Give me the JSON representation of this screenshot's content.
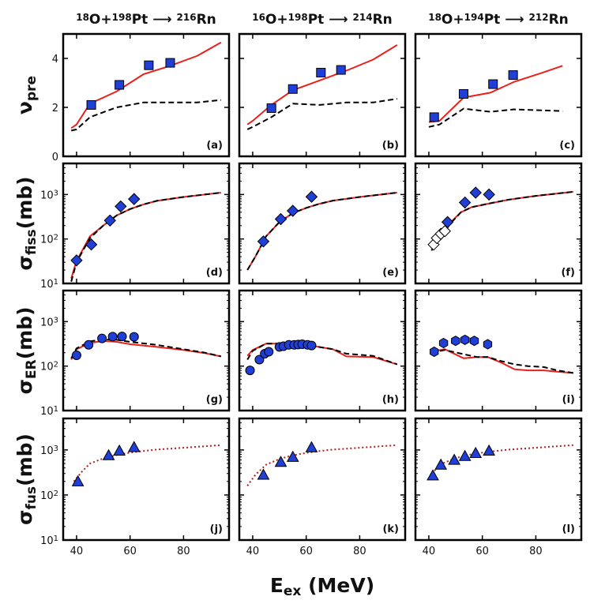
{
  "figure": {
    "xlabel": "E_ex (MeV)",
    "col_titles": [
      {
        "p1": "18",
        "b1": "O+",
        "p2": "198",
        "b2": "Pt",
        "arrow": "⟶",
        "p3": "216",
        "b3": "Rn"
      },
      {
        "p1": "16",
        "b1": "O+",
        "p2": "198",
        "b2": "Pt",
        "arrow": "⟶",
        "p3": "214",
        "b3": "Rn"
      },
      {
        "p1": "18",
        "b1": "O+",
        "p2": "194",
        "b2": "Pt",
        "arrow": "⟶",
        "p3": "212",
        "b3": "Rn"
      }
    ],
    "row_ylabels": [
      {
        "sym": "ν",
        "sub": "pre",
        "unit": ""
      },
      {
        "sym": "σ",
        "sub": "fiss",
        "unit": "(mb)"
      },
      {
        "sym": "σ",
        "sub": "ER",
        "unit": "(mb)"
      },
      {
        "sym": "σ",
        "sub": "fus",
        "unit": "(mb)"
      }
    ],
    "x_ticks": [
      40,
      60,
      80
    ],
    "colors": {
      "model_red": "#e8211c",
      "dashed": "#000000",
      "marker_fill": "#1f3fd6",
      "dotted": "#b02020"
    }
  },
  "chart_data": [
    {
      "panel": "(a)",
      "type": "line",
      "xlim": [
        35,
        97
      ],
      "ylim": [
        0,
        5
      ],
      "yscale": "linear",
      "yticks": [
        0,
        2,
        4
      ],
      "series": [
        {
          "style": "solid",
          "x": [
            38,
            40,
            45,
            55,
            65,
            75,
            85,
            94
          ],
          "y": [
            1.15,
            1.3,
            2.15,
            2.65,
            3.35,
            3.7,
            4.1,
            4.65
          ]
        },
        {
          "style": "dashed",
          "x": [
            38,
            40,
            45,
            55,
            65,
            75,
            85,
            94
          ],
          "y": [
            1.05,
            1.1,
            1.6,
            2.0,
            2.2,
            2.2,
            2.2,
            2.3
          ]
        },
        {
          "style": "square",
          "x": [
            45.5,
            56,
            67,
            75
          ],
          "y": [
            2.1,
            2.92,
            3.72,
            3.82
          ]
        }
      ]
    },
    {
      "panel": "(b)",
      "type": "line",
      "xlim": [
        35,
        97
      ],
      "ylim": [
        0,
        5
      ],
      "yscale": "linear",
      "yticks": [
        0,
        2,
        4
      ],
      "series": [
        {
          "style": "solid",
          "x": [
            38,
            40,
            47,
            55,
            65,
            75,
            85,
            94
          ],
          "y": [
            1.3,
            1.45,
            2.1,
            2.7,
            3.1,
            3.5,
            3.95,
            4.55
          ]
        },
        {
          "style": "dashed",
          "x": [
            38,
            40,
            47,
            55,
            65,
            75,
            85,
            94
          ],
          "y": [
            1.1,
            1.2,
            1.6,
            2.15,
            2.1,
            2.2,
            2.2,
            2.35
          ]
        },
        {
          "style": "square",
          "x": [
            47,
            55,
            65.5,
            73
          ],
          "y": [
            1.97,
            2.75,
            3.42,
            3.53
          ]
        }
      ]
    },
    {
      "panel": "(c)",
      "type": "line",
      "xlim": [
        35,
        97
      ],
      "ylim": [
        0,
        5
      ],
      "yscale": "linear",
      "yticks": [
        0,
        2,
        4
      ],
      "series": [
        {
          "style": "solid",
          "x": [
            40,
            44,
            53,
            63,
            72,
            82,
            90
          ],
          "y": [
            1.4,
            1.45,
            2.4,
            2.6,
            3.05,
            3.4,
            3.7
          ]
        },
        {
          "style": "dashed",
          "x": [
            40,
            44,
            53,
            63,
            72,
            82,
            90
          ],
          "y": [
            1.2,
            1.3,
            1.95,
            1.82,
            1.92,
            1.88,
            1.85
          ]
        },
        {
          "style": "square",
          "x": [
            42,
            53,
            64,
            71.5
          ],
          "y": [
            1.6,
            2.55,
            2.95,
            3.32
          ]
        }
      ]
    },
    {
      "panel": "(d)",
      "type": "line",
      "xlim": [
        35,
        97
      ],
      "ylim": [
        10,
        5000
      ],
      "yscale": "log",
      "yticks": [
        10,
        100,
        1000
      ],
      "ytick_labels": [
        "10¹",
        "10²",
        "10³"
      ],
      "series": [
        {
          "style": "solid",
          "x": [
            38,
            40,
            45,
            50,
            55,
            60,
            65,
            70,
            80,
            94
          ],
          "y": [
            13,
            32,
            115,
            200,
            340,
            470,
            600,
            720,
            880,
            1100
          ]
        },
        {
          "style": "dashed",
          "x": [
            38,
            40,
            45,
            50,
            55,
            60,
            65,
            70,
            80,
            94
          ],
          "y": [
            11,
            30,
            105,
            200,
            340,
            470,
            600,
            720,
            880,
            1100
          ]
        },
        {
          "style": "diamond",
          "x": [
            40,
            45.5,
            52.5,
            56.5,
            61.5
          ],
          "y": [
            33,
            75,
            260,
            540,
            790
          ]
        }
      ]
    },
    {
      "panel": "(e)",
      "type": "line",
      "xlim": [
        35,
        97
      ],
      "ylim": [
        10,
        5000
      ],
      "yscale": "log",
      "yticks": [
        10,
        100,
        1000
      ],
      "ytick_labels": [
        "10¹",
        "10²",
        "10³"
      ],
      "series": [
        {
          "style": "solid",
          "x": [
            38,
            41,
            45,
            50,
            55,
            60,
            65,
            70,
            80,
            94
          ],
          "y": [
            20,
            40,
            115,
            240,
            380,
            500,
            620,
            730,
            880,
            1100
          ]
        },
        {
          "style": "dashed",
          "x": [
            38,
            41,
            45,
            50,
            55,
            60,
            65,
            70,
            80,
            94
          ],
          "y": [
            20,
            40,
            115,
            240,
            380,
            500,
            620,
            730,
            880,
            1100
          ]
        },
        {
          "style": "diamond",
          "x": [
            44,
            50.5,
            55,
            62
          ],
          "y": [
            88,
            280,
            430,
            890
          ]
        }
      ]
    },
    {
      "panel": "(f)",
      "type": "line",
      "xlim": [
        35,
        97
      ],
      "ylim": [
        10,
        5000
      ],
      "yscale": "log",
      "yticks": [
        10,
        100,
        1000
      ],
      "ytick_labels": [
        "10¹",
        "10²",
        "10³"
      ],
      "series": [
        {
          "style": "solid",
          "x": [
            41,
            44,
            48,
            52,
            56,
            62,
            70,
            80,
            94
          ],
          "y": [
            60,
            110,
            230,
            400,
            520,
            620,
            770,
            930,
            1150
          ]
        },
        {
          "style": "dashed",
          "x": [
            41,
            44,
            48,
            52,
            56,
            62,
            70,
            80,
            94
          ],
          "y": [
            55,
            100,
            220,
            400,
            520,
            620,
            770,
            930,
            1150
          ]
        },
        {
          "style": "diamond",
          "x": [
            47,
            53.5,
            57.5,
            62.5
          ],
          "y": [
            240,
            660,
            1100,
            1000
          ]
        },
        {
          "style": "diamond-open",
          "x": [
            41.8,
            43,
            44.5,
            46
          ],
          "y": [
            75,
            105,
            130,
            150
          ]
        }
      ]
    },
    {
      "panel": "(g)",
      "type": "line",
      "xlim": [
        35,
        97
      ],
      "ylim": [
        10,
        5000
      ],
      "yscale": "log",
      "yticks": [
        10,
        100,
        1000
      ],
      "ytick_labels": [
        "10¹",
        "10²",
        "10³"
      ],
      "series": [
        {
          "style": "solid",
          "x": [
            38,
            40,
            45,
            50,
            55,
            60,
            70,
            80,
            88,
            94
          ],
          "y": [
            140,
            240,
            330,
            370,
            350,
            310,
            270,
            230,
            195,
            165
          ]
        },
        {
          "style": "dashed",
          "x": [
            38,
            40,
            45,
            50,
            55,
            60,
            70,
            80,
            88,
            94
          ],
          "y": [
            150,
            250,
            360,
            400,
            390,
            350,
            300,
            240,
            200,
            165
          ]
        },
        {
          "style": "circle",
          "x": [
            40,
            44.5,
            49.5,
            53.5,
            57,
            61.5
          ],
          "y": [
            175,
            300,
            420,
            460,
            465,
            455
          ]
        }
      ]
    },
    {
      "panel": "(h)",
      "type": "line",
      "xlim": [
        35,
        97
      ],
      "ylim": [
        10,
        5000
      ],
      "yscale": "log",
      "yticks": [
        10,
        100,
        1000
      ],
      "ytick_labels": [
        "10¹",
        "10²",
        "10³"
      ],
      "series": [
        {
          "style": "solid",
          "x": [
            38,
            40,
            45,
            55,
            60,
            70,
            75,
            85,
            94
          ],
          "y": [
            170,
            230,
            320,
            320,
            300,
            240,
            165,
            160,
            110
          ]
        },
        {
          "style": "dashed",
          "x": [
            38,
            40,
            45,
            55,
            60,
            70,
            75,
            85,
            94
          ],
          "y": [
            140,
            220,
            320,
            320,
            300,
            240,
            190,
            170,
            110
          ]
        },
        {
          "style": "circle",
          "x": [
            39,
            42.5,
            44.5,
            46,
            50,
            51.5,
            53.5,
            55.5,
            57,
            58.5,
            60.5,
            62
          ],
          "y": [
            80,
            140,
            190,
            210,
            270,
            280,
            300,
            300,
            305,
            310,
            300,
            290
          ]
        }
      ]
    },
    {
      "panel": "(i)",
      "type": "line",
      "xlim": [
        35,
        97
      ],
      "ylim": [
        10,
        5000
      ],
      "yscale": "log",
      "yticks": [
        10,
        100,
        1000
      ],
      "ytick_labels": [
        "10¹",
        "10²",
        "10³"
      ],
      "series": [
        {
          "style": "solid",
          "x": [
            41,
            46,
            53,
            58,
            62,
            67,
            72,
            77,
            83,
            88,
            94
          ],
          "y": [
            210,
            240,
            150,
            160,
            160,
            120,
            85,
            80,
            80,
            75,
            70
          ]
        },
        {
          "style": "dashed",
          "x": [
            41,
            46,
            53,
            58,
            62,
            67,
            72,
            77,
            83,
            88,
            94
          ],
          "y": [
            200,
            230,
            185,
            160,
            160,
            130,
            110,
            100,
            95,
            80,
            70
          ]
        },
        {
          "style": "hexagon",
          "x": [
            42,
            45.5,
            50,
            53.5,
            57,
            62
          ],
          "y": [
            210,
            330,
            370,
            390,
            370,
            310
          ]
        }
      ]
    },
    {
      "panel": "(j)",
      "type": "line",
      "xlim": [
        35,
        97
      ],
      "ylim": [
        10,
        5000
      ],
      "yscale": "log",
      "yticks": [
        10,
        100,
        1000
      ],
      "ytick_labels": [
        "10¹",
        "10²",
        "10³"
      ],
      "series": [
        {
          "style": "dotted",
          "x": [
            39,
            42,
            45,
            50,
            55,
            60,
            65,
            70,
            80,
            94
          ],
          "y": [
            200,
            330,
            500,
            650,
            770,
            870,
            950,
            1020,
            1120,
            1280
          ]
        },
        {
          "style": "triangle",
          "x": [
            40.5,
            52,
            56,
            61.5
          ],
          "y": [
            200,
            760,
            960,
            1150
          ]
        }
      ]
    },
    {
      "panel": "(k)",
      "type": "line",
      "xlim": [
        35,
        97
      ],
      "ylim": [
        10,
        5000
      ],
      "yscale": "log",
      "yticks": [
        10,
        100,
        1000
      ],
      "ytick_labels": [
        "10¹",
        "10²",
        "10³"
      ],
      "series": [
        {
          "style": "dotted",
          "x": [
            38,
            41,
            45,
            50,
            55,
            60,
            65,
            70,
            80,
            94
          ],
          "y": [
            160,
            280,
            470,
            630,
            760,
            860,
            950,
            1020,
            1120,
            1280
          ]
        },
        {
          "style": "triangle",
          "x": [
            44,
            50.5,
            55,
            62
          ],
          "y": [
            280,
            540,
            700,
            1140
          ]
        }
      ]
    },
    {
      "panel": "(l)",
      "type": "line",
      "xlim": [
        35,
        97
      ],
      "ylim": [
        10,
        5000
      ],
      "yscale": "log",
      "yticks": [
        10,
        100,
        1000
      ],
      "ytick_labels": [
        "10¹",
        "10²",
        "10³"
      ],
      "series": [
        {
          "style": "dotted",
          "x": [
            41,
            45,
            50,
            55,
            60,
            65,
            70,
            80,
            94
          ],
          "y": [
            300,
            500,
            660,
            780,
            870,
            950,
            1020,
            1120,
            1280
          ]
        },
        {
          "style": "triangle",
          "x": [
            41.5,
            44.5,
            49.5,
            53.5,
            57.5,
            62.5
          ],
          "y": [
            270,
            470,
            600,
            730,
            850,
            960
          ]
        }
      ]
    }
  ]
}
